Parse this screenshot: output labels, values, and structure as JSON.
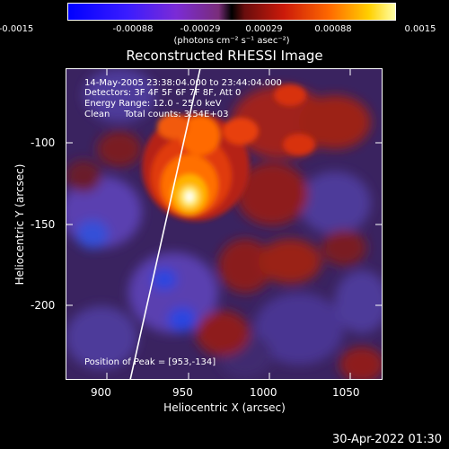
{
  "colorbar": {
    "ticks": [
      "-0.0015",
      "-0.00088",
      "-0.00029",
      "0.00029",
      "0.00088",
      "0.0015"
    ],
    "units": "(photons cm⁻² s⁻¹ asec⁻²)"
  },
  "title": "Reconstructed RHESSI Image",
  "info": {
    "time": "14-May-2005 23:38:04.000 to 23:44:04.000",
    "detectors": "Detectors: 3F 4F 5F 6F 7F 8F, Att 0",
    "energy": "Energy Range: 12.0 - 25.0 keV",
    "clean": "Clean     Total counts: 3.54E+03",
    "peak": "Position of Peak = [953,-134]"
  },
  "x_axis": {
    "label": "Heliocentric X (arcsec)",
    "ticks": [
      "900",
      "950",
      "1000",
      "1050"
    ],
    "range": [
      880,
      1070
    ]
  },
  "y_axis": {
    "label": "Heliocentric Y (arcsec)",
    "ticks": [
      "-100",
      "-150",
      "-200"
    ],
    "range": [
      -246,
      -60
    ]
  },
  "peak": {
    "x": 953,
    "y": -134
  },
  "timestamp": "30-Apr-2022 01:30",
  "colors": {
    "background": "#000000",
    "limb": "#ffffff"
  }
}
